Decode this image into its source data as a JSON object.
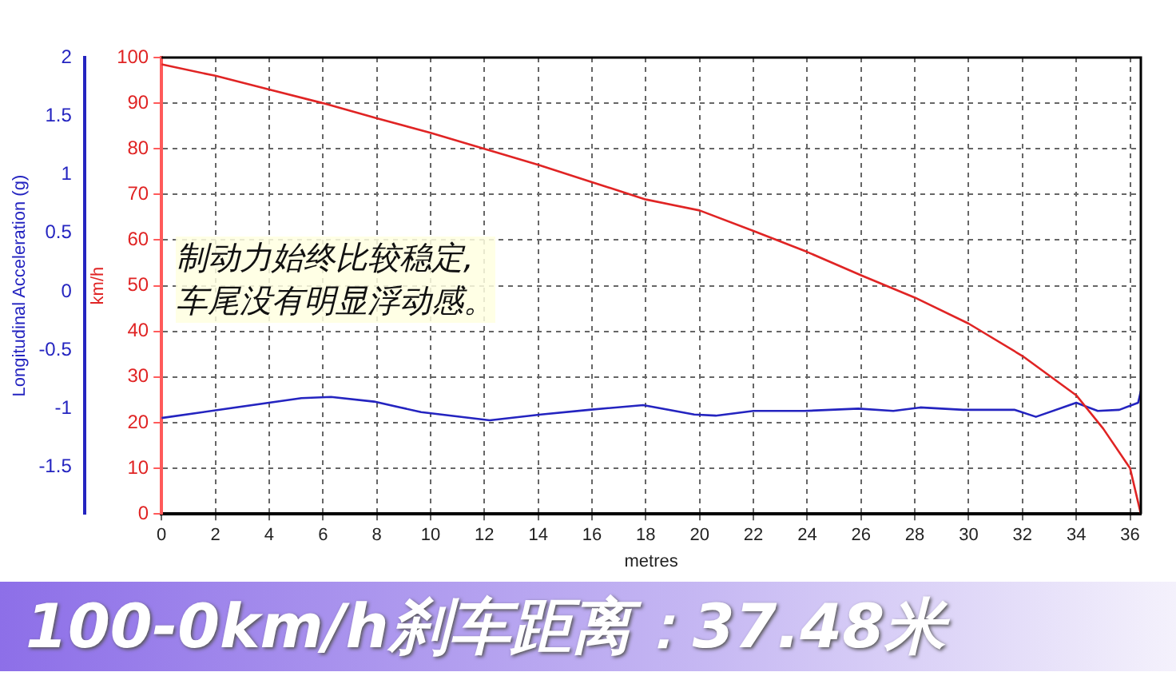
{
  "chart_data": {
    "type": "line",
    "title": "100-0km/h刹车距离：37.48米",
    "xlabel": "metres",
    "ylabel": "km/h",
    "y2label": "Longitudinal Acceleration (g)",
    "annotations": [
      "制动力始终比较稳定,\n车尾没有明显浮动感。"
    ],
    "xlim": [
      0,
      36.4
    ],
    "xticks": [
      0,
      2,
      4,
      6,
      8,
      10,
      12,
      14,
      16,
      18,
      20,
      22,
      24,
      26,
      28,
      30,
      32,
      34,
      36
    ],
    "ylim": [
      0,
      100
    ],
    "yticks": [
      0,
      10,
      20,
      30,
      40,
      50,
      60,
      70,
      80,
      90,
      100
    ],
    "y2lim": [
      -1.9,
      2
    ],
    "y2ticks": [
      -1.5,
      -1,
      -0.5,
      0,
      0.5,
      1,
      1.5,
      2
    ],
    "grid": true,
    "legend": false,
    "marker": "none",
    "line_style": "solid",
    "series": [
      {
        "color": "#e02424",
        "x": [
          0,
          2,
          4,
          6,
          8,
          10,
          12,
          14,
          16,
          18,
          20,
          22,
          24,
          26,
          28,
          30,
          32,
          34,
          35,
          36,
          36.4
        ],
        "values": [
          98.5,
          96,
          93,
          90,
          86.7,
          83.5,
          80,
          76.5,
          72.7,
          68.9,
          66.5,
          62,
          57.4,
          52.3,
          47.4,
          41.7,
          34.6,
          26,
          18.7,
          10,
          0
        ]
      },
      {
        "color": "#2424c0",
        "axis": "y2",
        "x": [
          0,
          5.2,
          6.3,
          7.9,
          9.65,
          12.2,
          14.1,
          15.9,
          17.9,
          19.8,
          20.6,
          22,
          23.9,
          25.9,
          27.2,
          28.2,
          29.8,
          31.7,
          32.5,
          34,
          34.8,
          35.6,
          36.3,
          36.4
        ],
        "values": [
          -1.08,
          -0.91,
          -0.9,
          -0.94,
          -1.03,
          -1.1,
          -1.05,
          -1.01,
          -0.97,
          -1.05,
          -1.06,
          -1.02,
          -1.02,
          -1,
          -1.02,
          -0.99,
          -1.01,
          -1.01,
          -1.07,
          -0.95,
          -1.02,
          -1.01,
          -0.95,
          -0.85
        ]
      }
    ]
  }
}
